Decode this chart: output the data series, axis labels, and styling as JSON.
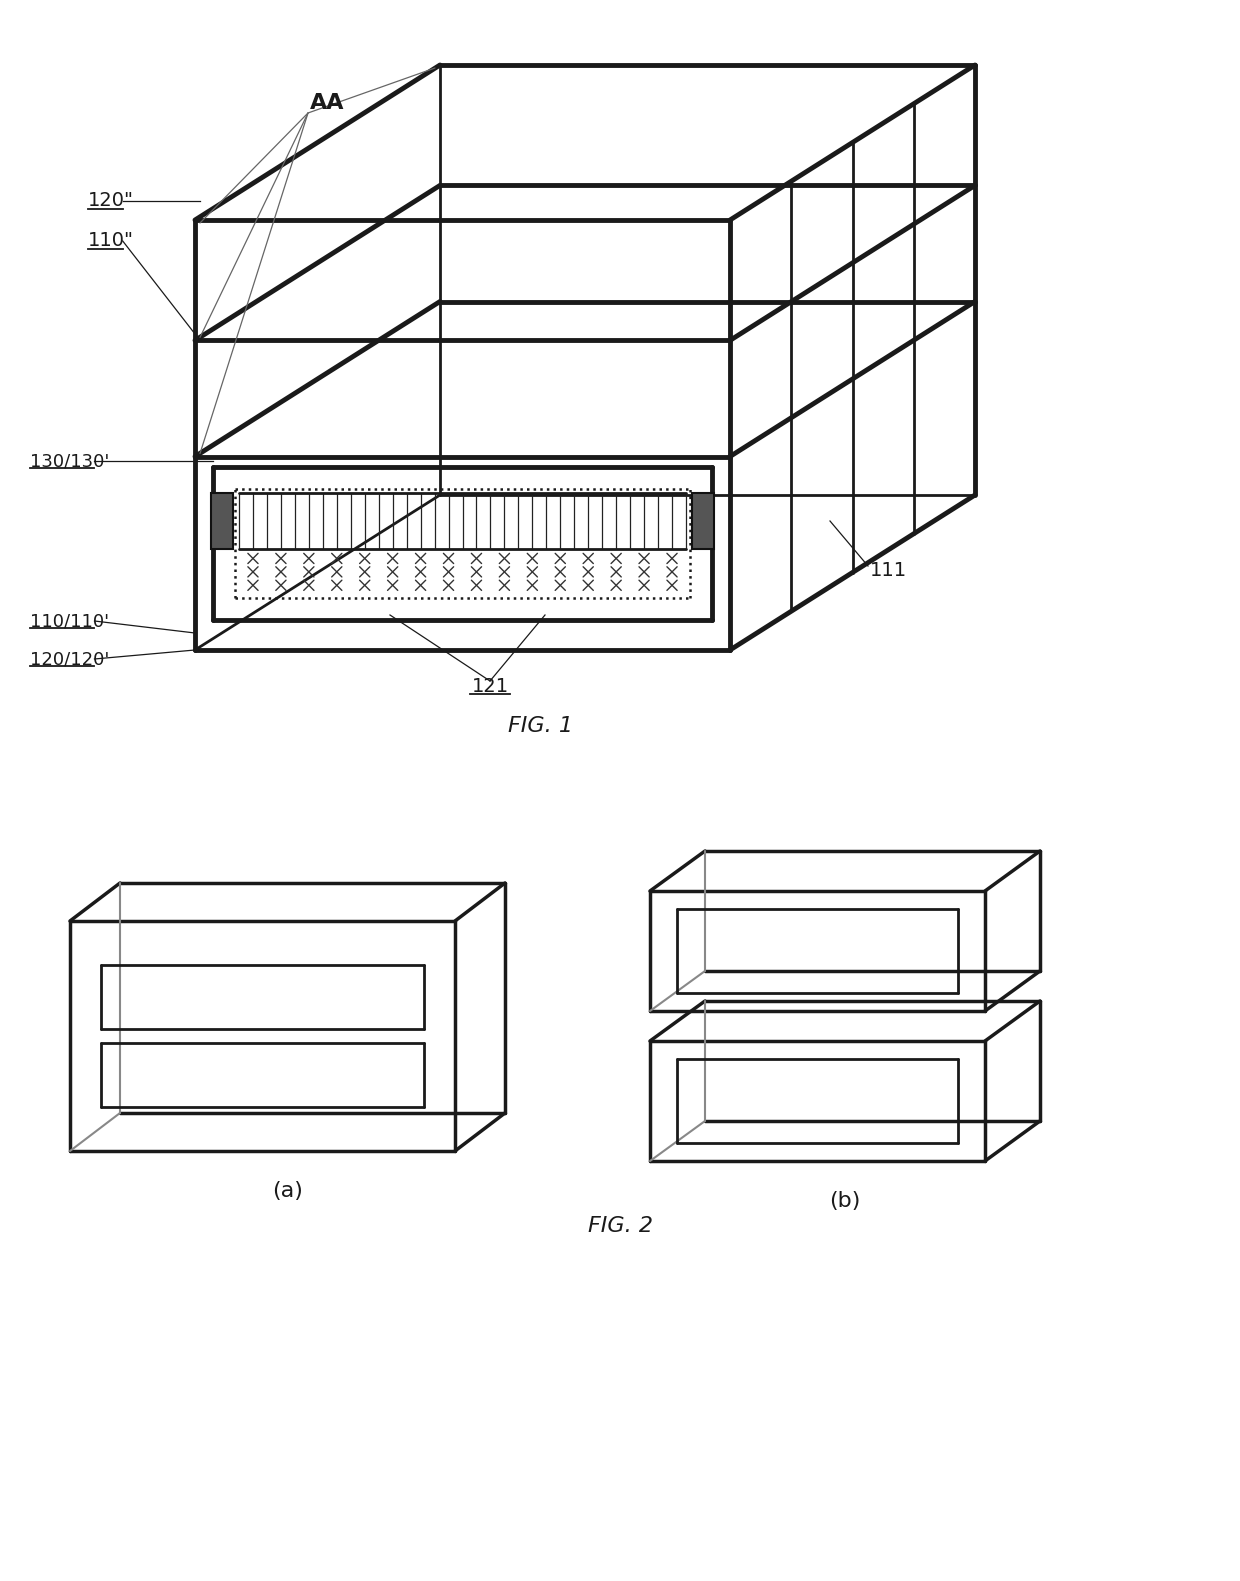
{
  "bg_color": "#ffffff",
  "fig1_caption": "FIG. 1",
  "fig2_caption": "FIG. 2",
  "label_AA": "AA",
  "label_120pp": "120\"",
  "label_110pp": "110\"",
  "label_130": "130/130'",
  "label_110": "110/110'",
  "label_120": "120/120'",
  "label_121": "121",
  "label_111": "111",
  "label_a": "(a)",
  "label_b": "(b)"
}
